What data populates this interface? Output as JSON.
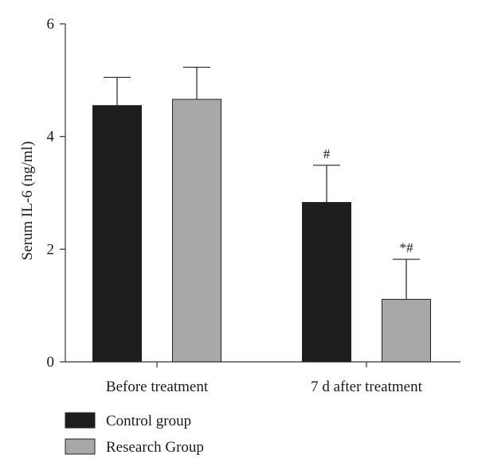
{
  "chart_data": {
    "type": "bar",
    "title": "",
    "xlabel": "",
    "ylabel": "Serum IL-6 (ng/ml)",
    "ylim": [
      0,
      6
    ],
    "yticks": [
      0,
      2,
      4,
      6
    ],
    "categories": [
      "Before treatment",
      "7 d after treatment"
    ],
    "series": [
      {
        "name": "Control group",
        "values": [
          4.55,
          2.83
        ],
        "errors": [
          0.5,
          0.66
        ],
        "color": "#1e1e1e",
        "annotations": [
          "",
          "#"
        ]
      },
      {
        "name": "Research Group",
        "values": [
          4.66,
          1.11
        ],
        "errors": [
          0.57,
          0.71
        ],
        "color": "#a8a8a8",
        "annotations": [
          "",
          "*#"
        ]
      }
    ],
    "legend": "bottom-left",
    "grid": false
  }
}
